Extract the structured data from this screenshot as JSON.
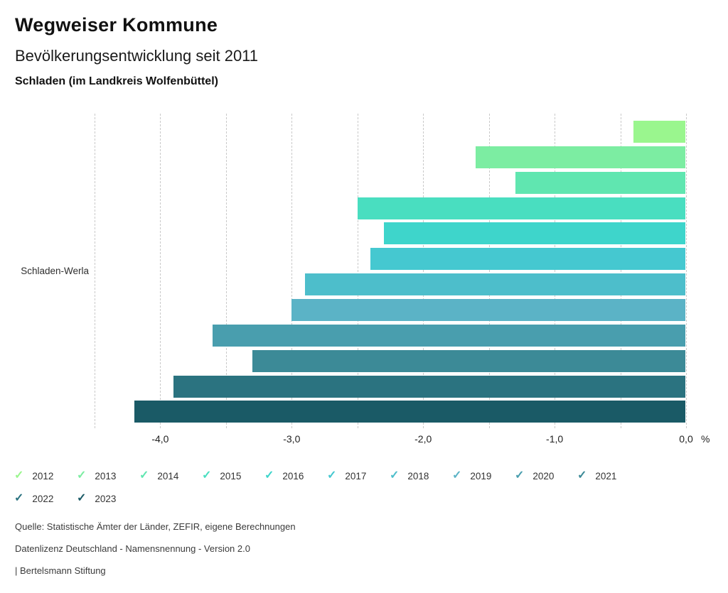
{
  "header": {
    "app_title": "Wegweiser Kommune"
  },
  "chart_data": {
    "type": "bar",
    "orientation": "horizontal",
    "title": "Bevölkerungsentwicklung seit 2011",
    "subtitle": "Schladen (im Landkreis Wolfenbüttel)",
    "category_label": "Schladen-Werla",
    "unit": "%",
    "xlim": [
      -4.5,
      0
    ],
    "gridline_step": 0.5,
    "grid": "dashed",
    "legend_position": "bottom",
    "x_ticks": [
      {
        "label": "-4,0",
        "value": -4.0
      },
      {
        "label": "-3,0",
        "value": -3.0
      },
      {
        "label": "-2,0",
        "value": -2.0
      },
      {
        "label": "-1,0",
        "value": -1.0
      },
      {
        "label": "0,0",
        "value": 0.0
      }
    ],
    "series": [
      {
        "year": "2012",
        "value": -0.4,
        "color": "#9AF68E"
      },
      {
        "year": "2013",
        "value": -1.6,
        "color": "#7CEDA2"
      },
      {
        "year": "2014",
        "value": -1.3,
        "color": "#60E6B0"
      },
      {
        "year": "2015",
        "value": -2.5,
        "color": "#49DEC0"
      },
      {
        "year": "2016",
        "value": -2.3,
        "color": "#3ED5CB"
      },
      {
        "year": "2017",
        "value": -2.4,
        "color": "#45C8D0"
      },
      {
        "year": "2018",
        "value": -2.9,
        "color": "#4DBECB"
      },
      {
        "year": "2019",
        "value": -3.0,
        "color": "#5BB3C6"
      },
      {
        "year": "2020",
        "value": -3.6,
        "color": "#499EAE"
      },
      {
        "year": "2021",
        "value": -3.3,
        "color": "#3C8A97"
      },
      {
        "year": "2022",
        "value": -3.9,
        "color": "#2B7380"
      },
      {
        "year": "2023",
        "value": -4.2,
        "color": "#1A5A66"
      }
    ]
  },
  "legend": {
    "check_icon": "✓"
  },
  "footer": {
    "source": "Quelle: Statistische Ämter der Länder, ZEFIR, eigene Berechnungen",
    "license": "Datenlizenz Deutschland - Namensnennung - Version 2.0",
    "attribution": "| Bertelsmann Stiftung"
  }
}
